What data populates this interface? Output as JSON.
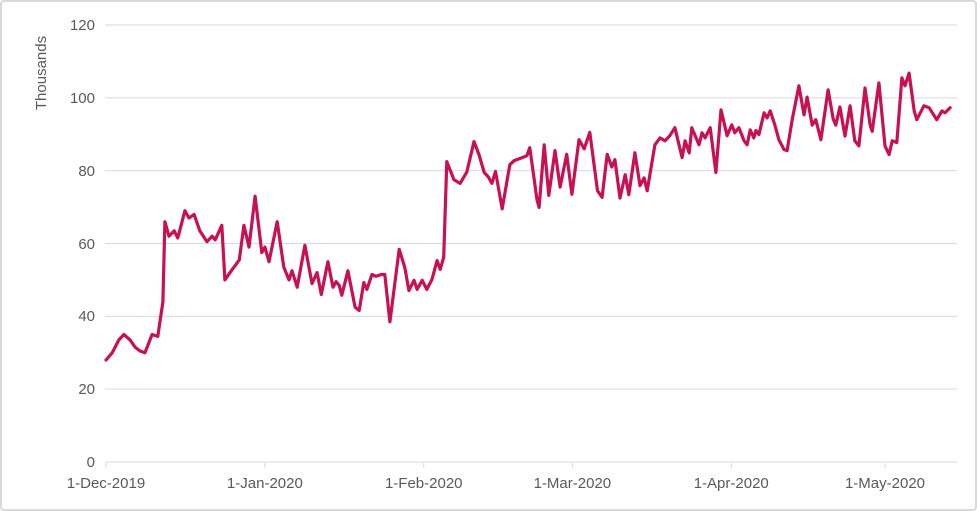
{
  "window": {
    "background": "#FFFFFF",
    "border_color": "#D9D9D9"
  },
  "chart_data": {
    "type": "line",
    "title": "",
    "xlabel": "",
    "ylabel": "Thousands",
    "ylim": [
      0,
      120
    ],
    "y_tick_values": [
      0,
      20,
      40,
      60,
      80,
      100,
      120
    ],
    "x_ticks": [
      {
        "label": "1-Dec-2019",
        "day": 0
      },
      {
        "label": "1-Jan-2020",
        "day": 31
      },
      {
        "label": "1-Feb-2020",
        "day": 62
      },
      {
        "label": "1-Mar-2020",
        "day": 91
      },
      {
        "label": "1-Apr-2020",
        "day": 122
      },
      {
        "label": "1-May-2020",
        "day": 152
      }
    ],
    "x_axis_day_span": 166,
    "grid": "horizontal",
    "legend": "none",
    "colors": {
      "line": "#C81052",
      "grid": "#D9D9D9",
      "axis_text": "#595959"
    },
    "series": [
      {
        "points": [
          [
            0,
            28
          ],
          [
            1.2,
            30
          ],
          [
            2.5,
            33.5
          ],
          [
            3.5,
            35
          ],
          [
            4.7,
            33.5
          ],
          [
            5.7,
            31.5
          ],
          [
            6.6,
            30.5
          ],
          [
            7.6,
            30
          ],
          [
            9,
            35
          ],
          [
            10.1,
            34.5
          ],
          [
            11.1,
            44
          ],
          [
            11.5,
            66
          ],
          [
            12.3,
            62
          ],
          [
            13.3,
            63.5
          ],
          [
            14,
            61.5
          ],
          [
            15.4,
            69
          ],
          [
            16.2,
            67
          ],
          [
            17.2,
            68
          ],
          [
            18.3,
            63.5
          ],
          [
            19.7,
            60.5
          ],
          [
            20.7,
            62
          ],
          [
            21.3,
            61
          ],
          [
            22.6,
            65
          ],
          [
            23.2,
            50
          ],
          [
            24.2,
            52
          ],
          [
            25.2,
            54
          ],
          [
            26,
            55.5
          ],
          [
            26.9,
            65
          ],
          [
            27.9,
            59
          ],
          [
            29.1,
            73
          ],
          [
            30.4,
            57.5
          ],
          [
            31,
            59
          ],
          [
            31.8,
            55
          ],
          [
            33.4,
            66
          ],
          [
            34.7,
            53.5
          ],
          [
            35.7,
            50
          ],
          [
            36.3,
            52.5
          ],
          [
            37.3,
            48
          ],
          [
            38.8,
            59.5
          ],
          [
            40.2,
            49
          ],
          [
            41.2,
            52
          ],
          [
            42,
            46
          ],
          [
            43.3,
            55
          ],
          [
            44.3,
            48
          ],
          [
            44.9,
            49.5
          ],
          [
            45.5,
            48.5
          ],
          [
            46,
            45.8
          ],
          [
            47.2,
            52.5
          ],
          [
            48.6,
            42.5
          ],
          [
            49.4,
            41.6
          ],
          [
            50.3,
            49.3
          ],
          [
            50.9,
            47.4
          ],
          [
            51.9,
            51.5
          ],
          [
            52.7,
            51
          ],
          [
            53.7,
            51.5
          ],
          [
            54.4,
            51.5
          ],
          [
            55.4,
            38.5
          ],
          [
            57.2,
            58.4
          ],
          [
            58.3,
            53.4
          ],
          [
            59.1,
            47.1
          ],
          [
            60.1,
            49.9
          ],
          [
            60.7,
            47.4
          ],
          [
            61.7,
            49.9
          ],
          [
            62.6,
            47.4
          ],
          [
            63.6,
            50.1
          ],
          [
            64.6,
            55.3
          ],
          [
            65.2,
            52.9
          ],
          [
            65.9,
            56.2
          ],
          [
            66.5,
            82.5
          ],
          [
            67.9,
            77.5
          ],
          [
            69.1,
            76.5
          ],
          [
            70.4,
            79.6
          ],
          [
            71.8,
            88
          ],
          [
            72.8,
            84.3
          ],
          [
            73.8,
            79.5
          ],
          [
            74.6,
            78.3
          ],
          [
            75.3,
            76.5
          ],
          [
            76,
            79.8
          ],
          [
            77.3,
            69.5
          ],
          [
            78.8,
            81.6
          ],
          [
            79.6,
            82.7
          ],
          [
            81.2,
            83.6
          ],
          [
            82.1,
            84.1
          ],
          [
            82.7,
            86.3
          ],
          [
            84.1,
            72
          ],
          [
            84.5,
            69.9
          ],
          [
            85.5,
            87.1
          ],
          [
            86.4,
            73.2
          ],
          [
            87.6,
            85.5
          ],
          [
            88.6,
            75.5
          ],
          [
            89.9,
            84.5
          ],
          [
            90.9,
            73.5
          ],
          [
            92.3,
            88.5
          ],
          [
            93.3,
            86
          ],
          [
            94.4,
            90.5
          ],
          [
            95.9,
            74.5
          ],
          [
            96.8,
            72.7
          ],
          [
            97.8,
            84.5
          ],
          [
            98.7,
            81
          ],
          [
            99.3,
            83
          ],
          [
            100.3,
            72.5
          ],
          [
            101.3,
            78.9
          ],
          [
            102,
            73.4
          ],
          [
            103.2,
            84.9
          ],
          [
            104.2,
            75.9
          ],
          [
            105,
            78
          ],
          [
            105.6,
            74.5
          ],
          [
            107.1,
            87.1
          ],
          [
            108.1,
            89
          ],
          [
            109.1,
            88.2
          ],
          [
            110,
            89.6
          ],
          [
            111,
            91.8
          ],
          [
            112.4,
            83.6
          ],
          [
            113,
            88.2
          ],
          [
            113.8,
            84.9
          ],
          [
            114.3,
            91.8
          ],
          [
            115.7,
            87.1
          ],
          [
            116.3,
            90.4
          ],
          [
            116.9,
            89
          ],
          [
            117.9,
            91.8
          ],
          [
            119,
            79.5
          ],
          [
            120,
            96.7
          ],
          [
            121.2,
            89.6
          ],
          [
            122.1,
            92.6
          ],
          [
            122.7,
            90.4
          ],
          [
            123.5,
            91.8
          ],
          [
            124.5,
            88.2
          ],
          [
            125.1,
            87.1
          ],
          [
            125.7,
            91.2
          ],
          [
            126.4,
            89
          ],
          [
            126.8,
            91
          ],
          [
            127.4,
            89.9
          ],
          [
            128.4,
            95.9
          ],
          [
            129,
            94.5
          ],
          [
            129.6,
            96.4
          ],
          [
            130.5,
            92.6
          ],
          [
            131.3,
            88.5
          ],
          [
            132.3,
            85.8
          ],
          [
            132.9,
            85.5
          ],
          [
            133.9,
            94
          ],
          [
            135.2,
            103.3
          ],
          [
            136.2,
            95.3
          ],
          [
            136.8,
            100.2
          ],
          [
            137.8,
            92.5
          ],
          [
            138.5,
            94
          ],
          [
            139.5,
            88.5
          ],
          [
            140.9,
            102.2
          ],
          [
            141.9,
            94.2
          ],
          [
            142.4,
            92.5
          ],
          [
            143.2,
            97.5
          ],
          [
            144.2,
            89.5
          ],
          [
            145.2,
            97.8
          ],
          [
            146.1,
            88.2
          ],
          [
            146.9,
            86.8
          ],
          [
            148.1,
            102.7
          ],
          [
            149.1,
            92.6
          ],
          [
            149.5,
            90.8
          ],
          [
            150.8,
            104.1
          ],
          [
            152,
            86.8
          ],
          [
            152.8,
            84.4
          ],
          [
            153.4,
            88.2
          ],
          [
            154.3,
            87.7
          ],
          [
            155.3,
            105.5
          ],
          [
            155.9,
            103.3
          ],
          [
            156.7,
            106.8
          ],
          [
            157.7,
            96.4
          ],
          [
            158.2,
            94
          ],
          [
            159.6,
            97.8
          ],
          [
            160.6,
            97.3
          ],
          [
            161.6,
            95.1
          ],
          [
            162.1,
            94
          ],
          [
            163.1,
            96.4
          ],
          [
            163.7,
            95.9
          ],
          [
            164.7,
            97.3
          ]
        ]
      }
    ]
  }
}
